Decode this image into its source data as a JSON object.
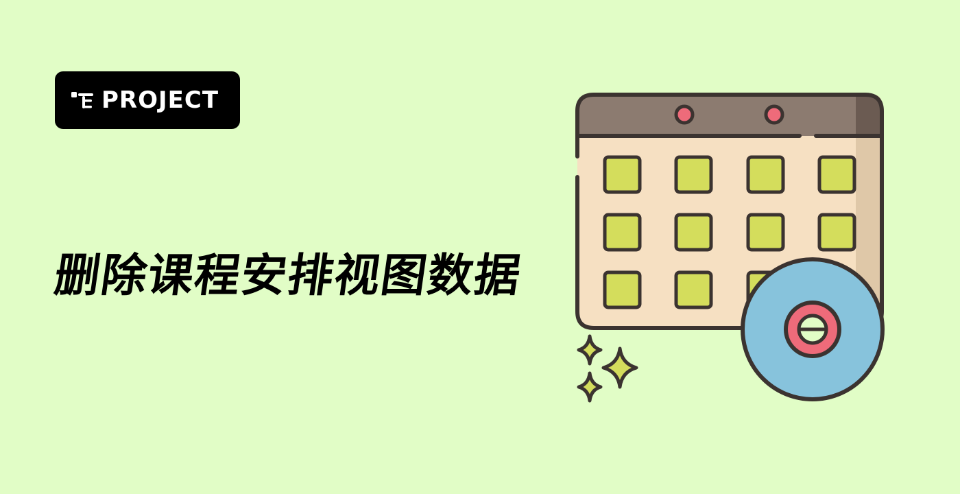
{
  "badge": {
    "label": "PROJECT",
    "icon": "project-tree-icon"
  },
  "title": "删除课程安排视图数据",
  "illustration": {
    "icon": "calendar-disc-icon",
    "colors": {
      "background": "#e1fdc6",
      "outline": "#3b3330",
      "calendar_header": "#8c7b70",
      "calendar_header_shade": "#6b5b52",
      "calendar_body": "#f6e0c2",
      "calendar_body_shade": "#dfc8a8",
      "day_cells": "#d4dd5c",
      "disc": "#87c3dc",
      "disc_center": "#ee6b7a",
      "sparkles": "#d4dd5c"
    }
  }
}
